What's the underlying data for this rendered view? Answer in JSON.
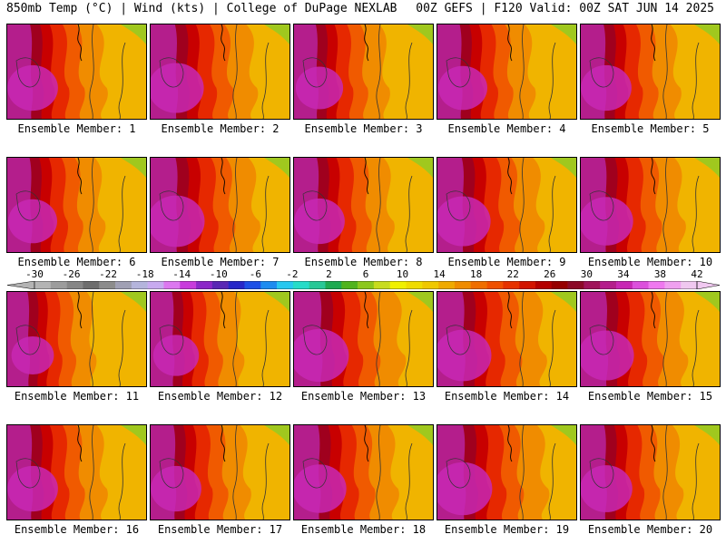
{
  "header": {
    "left": "850mb Temp (°C) | Wind (kts) | College of DuPage NEXLAB",
    "right": "00Z GEFS | F120 Valid: 00Z SAT JUN 14 2025"
  },
  "members": [
    {
      "label": "Ensemble Member: 1",
      "core": 0.55
    },
    {
      "label": "Ensemble Member: 2",
      "core": 0.7
    },
    {
      "label": "Ensemble Member: 3",
      "core": 0.45
    },
    {
      "label": "Ensemble Member: 4",
      "core": 0.5
    },
    {
      "label": "Ensemble Member: 5",
      "core": 0.55
    },
    {
      "label": "Ensemble Member: 6",
      "core": 0.5
    },
    {
      "label": "Ensemble Member: 7",
      "core": 0.75
    },
    {
      "label": "Ensemble Member: 8",
      "core": 0.55
    },
    {
      "label": "Ensemble Member: 9",
      "core": 0.7
    },
    {
      "label": "Ensemble Member: 10",
      "core": 0.65
    },
    {
      "label": "Ensemble Member: 11",
      "core": 0.3
    },
    {
      "label": "Ensemble Member: 12",
      "core": 0.4
    },
    {
      "label": "Ensemble Member: 13",
      "core": 0.8
    },
    {
      "label": "Ensemble Member: 14",
      "core": 0.75
    },
    {
      "label": "Ensemble Member: 15",
      "core": 0.7
    },
    {
      "label": "Ensemble Member: 16",
      "core": 0.55
    },
    {
      "label": "Ensemble Member: 17",
      "core": 0.55
    },
    {
      "label": "Ensemble Member: 18",
      "core": 0.65
    },
    {
      "label": "Ensemble Member: 19",
      "core": 0.8
    },
    {
      "label": "Ensemble Member: 20",
      "core": 0.6
    }
  ],
  "colorbar": {
    "ticks": [
      "-30",
      "-26",
      "-22",
      "-18",
      "-14",
      "-10",
      "-6",
      "-2",
      "2",
      "6",
      "10",
      "14",
      "18",
      "22",
      "26",
      "30",
      "34",
      "38",
      "42"
    ],
    "colors": [
      "#b4b4b4",
      "#9c9c9c",
      "#868686",
      "#6e6e6e",
      "#8c8c8c",
      "#a0a0b4",
      "#b4b4dc",
      "#c8aaf0",
      "#dc78f0",
      "#c83cdc",
      "#8c28c8",
      "#5a28b4",
      "#2828c8",
      "#1e50e6",
      "#1e8cf0",
      "#28c8f0",
      "#28dcc8",
      "#28c896",
      "#1eaa50",
      "#50b41e",
      "#8cc81e",
      "#c8dc1e",
      "#f0f000",
      "#f0dc00",
      "#f0c800",
      "#f0aa00",
      "#f08c00",
      "#f06e00",
      "#f05000",
      "#e63200",
      "#d21400",
      "#b40000",
      "#960000",
      "#8c0a28",
      "#a0145a",
      "#b41e8c",
      "#c828b4",
      "#dc50dc",
      "#f078f0",
      "#f0a0f0",
      "#f0c8f0"
    ]
  }
}
